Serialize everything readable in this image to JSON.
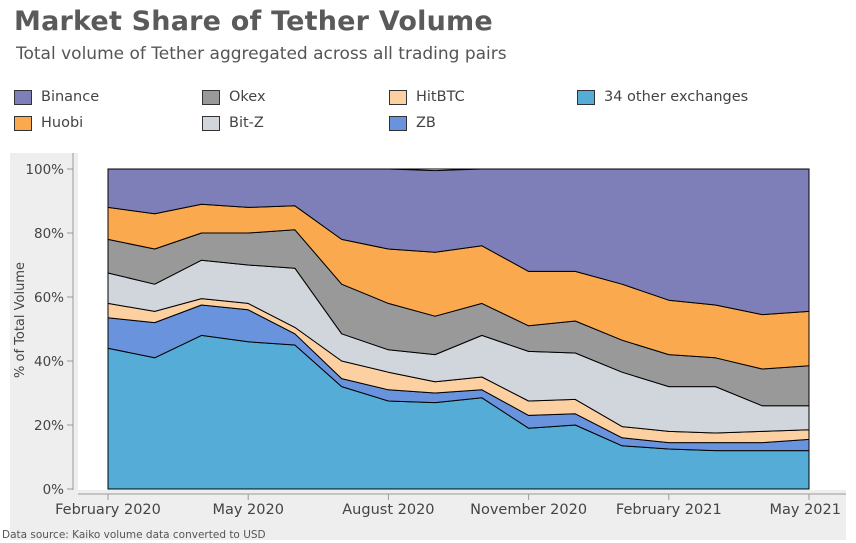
{
  "title": "Market Share of Tether Volume",
  "subtitle": "Total volume of Tether aggregated across all trading pairs",
  "source": "Data source: Kaiko volume data converted to USD",
  "chart_data": {
    "type": "area",
    "stacked": true,
    "ylabel": "% of Total Volume",
    "ylim": [
      0,
      100
    ],
    "yticks": [
      "0%",
      "20%",
      "40%",
      "60%",
      "80%",
      "100%"
    ],
    "xticks": [
      {
        "label": "February 2020",
        "pos": 1
      },
      {
        "label": "May 2020",
        "pos": 4
      },
      {
        "label": "August 2020",
        "pos": 7
      },
      {
        "label": "November 2020",
        "pos": 10
      },
      {
        "label": "February 2021",
        "pos": 13
      },
      {
        "label": "May 2021",
        "pos": 16
      }
    ],
    "x": [
      1,
      2,
      3,
      4,
      5,
      6,
      7,
      8,
      9,
      10,
      11,
      12,
      13,
      14,
      15,
      16
    ],
    "series": [
      {
        "name": "34 other exchanges",
        "color": "#55acd6",
        "values": [
          44,
          41,
          48,
          46,
          45,
          32,
          27.5,
          27,
          28.5,
          19,
          20,
          13.5,
          12.5,
          12,
          12,
          12
        ]
      },
      {
        "name": "ZB",
        "color": "#6a93dd",
        "values": [
          9.5,
          11,
          9.5,
          10,
          3.5,
          2.5,
          3.5,
          3,
          2.5,
          4,
          3.5,
          2.5,
          2,
          2.5,
          2.5,
          3.5
        ]
      },
      {
        "name": "HitBTC",
        "color": "#fdd0a2",
        "values": [
          4.5,
          3.5,
          2,
          2,
          2,
          5.5,
          5.5,
          3.5,
          4,
          4.5,
          4.5,
          3.5,
          3.5,
          3,
          3.5,
          3
        ]
      },
      {
        "name": "Bit-Z",
        "color": "#d0d6dc",
        "values": [
          9.5,
          8.5,
          12,
          12,
          18.5,
          8.5,
          7,
          8.5,
          13,
          15.5,
          14.5,
          17,
          14,
          14.5,
          8,
          7.5
        ]
      },
      {
        "name": "Okex",
        "color": "#999999",
        "values": [
          10.5,
          11,
          8.5,
          10,
          12,
          15.5,
          14.5,
          12,
          10,
          8,
          10,
          10,
          10,
          9,
          11.5,
          12.5
        ]
      },
      {
        "name": "Huobi",
        "color": "#fba94f",
        "values": [
          10,
          11,
          9,
          8,
          7.5,
          14,
          17,
          20,
          18,
          17,
          15.5,
          17.5,
          17,
          16.5,
          17,
          17
        ]
      },
      {
        "name": "Binance",
        "color": "#7e7eb9",
        "values": [
          12,
          14,
          11,
          12,
          11.5,
          22,
          25,
          25.5,
          24,
          32,
          32,
          36,
          41,
          42.5,
          45.5,
          44.5
        ]
      }
    ]
  },
  "legend": [
    {
      "label": "Binance",
      "color": "#7e7eb9"
    },
    {
      "label": "Okex",
      "color": "#999999"
    },
    {
      "label": "HitBTC",
      "color": "#fdd0a2"
    },
    {
      "label": "34 other exchanges",
      "color": "#55acd6"
    },
    {
      "label": "Huobi",
      "color": "#fba94f"
    },
    {
      "label": "Bit-Z",
      "color": "#d0d6dc"
    },
    {
      "label": "ZB",
      "color": "#6a93dd"
    }
  ]
}
